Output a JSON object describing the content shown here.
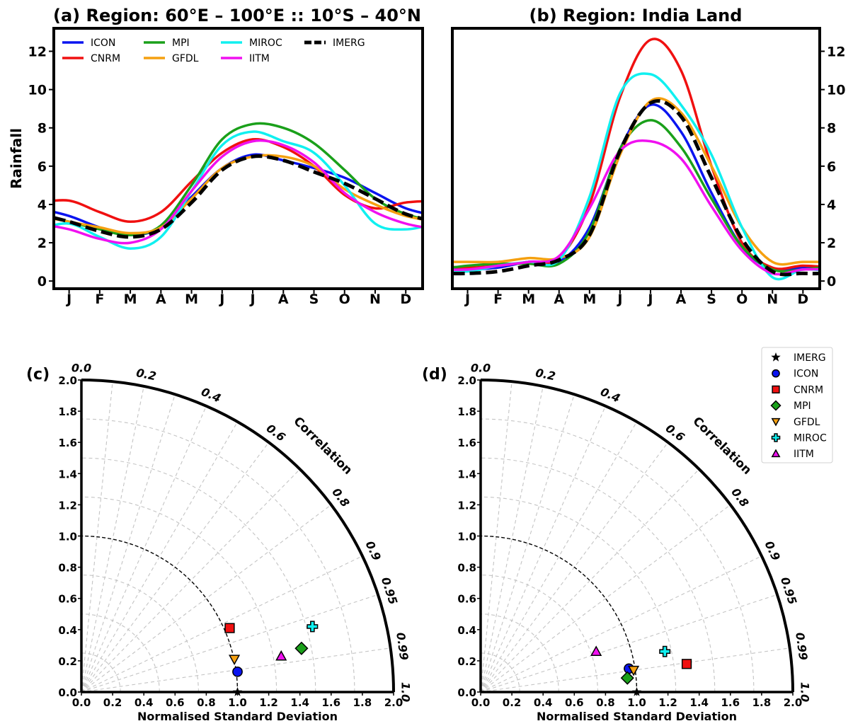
{
  "colors": {
    "ICON": "#0a14f0",
    "CNRM": "#f01010",
    "MPI": "#1aa01a",
    "GFDL": "#f5a010",
    "MIROC": "#10f0f0",
    "IITM": "#f010f0",
    "IMERG": "#000000"
  },
  "chart_data": [
    {
      "panel": "a",
      "type": "line",
      "title": "(a) Region: 60°E – 100°E :: 10°S – 40°N",
      "ylabel": "Rainfall",
      "xlabel": "",
      "ylim": [
        -0.4,
        13.2
      ],
      "yticks": [
        0,
        2,
        4,
        6,
        8,
        10,
        12
      ],
      "categories": [
        "J",
        "F",
        "M",
        "A",
        "M",
        "J",
        "J",
        "A",
        "S",
        "O",
        "N",
        "D"
      ],
      "legend": "top (4 columns)",
      "series": [
        {
          "name": "ICON",
          "values": [
            3.4,
            2.8,
            2.4,
            2.8,
            4.4,
            5.9,
            6.6,
            6.3,
            5.9,
            5.4,
            4.6,
            3.8
          ]
        },
        {
          "name": "CNRM",
          "values": [
            4.2,
            3.6,
            3.1,
            3.6,
            5.2,
            6.7,
            7.4,
            7.0,
            6.0,
            4.5,
            3.8,
            4.1
          ]
        },
        {
          "name": "MPI",
          "values": [
            3.1,
            2.7,
            2.4,
            2.9,
            5.0,
            7.4,
            8.2,
            8.0,
            7.2,
            5.8,
            4.3,
            3.5
          ]
        },
        {
          "name": "GFDL",
          "values": [
            3.1,
            2.8,
            2.5,
            2.8,
            4.3,
            5.9,
            6.5,
            6.5,
            6.0,
            4.8,
            4.0,
            3.4
          ]
        },
        {
          "name": "MIROC",
          "values": [
            3.0,
            2.3,
            1.7,
            2.3,
            4.7,
            7.1,
            7.8,
            7.3,
            6.7,
            5.0,
            3.0,
            2.7
          ]
        },
        {
          "name": "IITM",
          "values": [
            2.7,
            2.2,
            2.0,
            2.7,
            4.7,
            6.5,
            7.3,
            7.1,
            6.2,
            4.6,
            3.6,
            3.0
          ]
        },
        {
          "name": "IMERG",
          "values": [
            3.1,
            2.6,
            2.3,
            2.7,
            4.1,
            5.8,
            6.5,
            6.3,
            5.7,
            5.1,
            4.3,
            3.5
          ]
        }
      ]
    },
    {
      "panel": "b",
      "type": "line",
      "title": "(b) Region: India Land",
      "ylabel": "",
      "xlabel": "",
      "ylim": [
        -0.4,
        13.2
      ],
      "yticks": [
        0,
        2,
        4,
        6,
        8,
        10,
        12
      ],
      "categories": [
        "J",
        "F",
        "M",
        "A",
        "M",
        "J",
        "J",
        "A",
        "S",
        "O",
        "N",
        "D"
      ],
      "series": [
        {
          "name": "ICON",
          "values": [
            0.6,
            0.7,
            1.0,
            1.0,
            2.8,
            6.9,
            9.2,
            7.8,
            4.6,
            1.8,
            0.6,
            0.7
          ]
        },
        {
          "name": "CNRM",
          "values": [
            0.7,
            0.8,
            1.0,
            1.2,
            4.0,
            9.6,
            12.6,
            11.0,
            6.0,
            2.0,
            0.7,
            0.8
          ]
        },
        {
          "name": "MPI",
          "values": [
            0.8,
            0.9,
            0.9,
            0.9,
            2.6,
            6.9,
            8.4,
            7.0,
            4.3,
            1.8,
            0.6,
            0.6
          ]
        },
        {
          "name": "GFDL",
          "values": [
            1.0,
            1.0,
            1.2,
            1.2,
            2.3,
            6.6,
            9.4,
            8.8,
            6.0,
            2.8,
            1.0,
            1.0
          ]
        },
        {
          "name": "MIROC",
          "values": [
            0.5,
            0.8,
            1.0,
            1.1,
            4.4,
            9.8,
            10.8,
            9.2,
            6.6,
            2.8,
            0.2,
            0.6
          ]
        },
        {
          "name": "IITM",
          "values": [
            0.6,
            0.8,
            1.0,
            1.3,
            3.8,
            6.8,
            7.3,
            6.4,
            3.9,
            1.6,
            0.4,
            0.6
          ]
        },
        {
          "name": "IMERG",
          "values": [
            0.4,
            0.5,
            0.8,
            1.1,
            2.4,
            6.8,
            9.3,
            8.6,
            5.4,
            2.2,
            0.5,
            0.4
          ]
        }
      ]
    },
    {
      "panel": "c",
      "type": "scatter",
      "subtype": "taylor",
      "label": "(c)",
      "xlabel": "Normalised Standard Deviation",
      "axis_label": "Correlation",
      "sd_range": [
        0,
        2
      ],
      "sd_ticks": [
        "0.0",
        "0.2",
        "0.4",
        "0.6",
        "0.8",
        "1.0",
        "1.2",
        "1.4",
        "1.6",
        "1.8",
        "2.0"
      ],
      "corr_ticks": [
        "0.0",
        "0.2",
        "0.4",
        "0.6",
        "0.8",
        "0.9",
        "0.95",
        "0.99",
        "1.0"
      ],
      "points": [
        {
          "name": "ICON",
          "x": 1.0,
          "y": 0.13
        },
        {
          "name": "CNRM",
          "x": 0.95,
          "y": 0.41
        },
        {
          "name": "MPI",
          "x": 1.41,
          "y": 0.28
        },
        {
          "name": "GFDL",
          "x": 0.98,
          "y": 0.21
        },
        {
          "name": "MIROC",
          "x": 1.48,
          "y": 0.42
        },
        {
          "name": "IITM",
          "x": 1.28,
          "y": 0.23
        }
      ]
    },
    {
      "panel": "d",
      "type": "scatter",
      "subtype": "taylor",
      "label": "(d)",
      "xlabel": "Normalised Standard Deviation",
      "axis_label": "Correlation",
      "sd_range": [
        0,
        2
      ],
      "sd_ticks": [
        "0.0",
        "0.2",
        "0.4",
        "0.6",
        "0.8",
        "1.0",
        "1.2",
        "1.4",
        "1.6",
        "1.8",
        "2.0"
      ],
      "corr_ticks": [
        "0.0",
        "0.2",
        "0.4",
        "0.6",
        "0.8",
        "0.9",
        "0.95",
        "0.99",
        "1.0"
      ],
      "legend": "top-right",
      "points": [
        {
          "name": "ICON",
          "x": 0.95,
          "y": 0.15
        },
        {
          "name": "CNRM",
          "x": 1.32,
          "y": 0.18
        },
        {
          "name": "MPI",
          "x": 0.94,
          "y": 0.09
        },
        {
          "name": "GFDL",
          "x": 0.98,
          "y": 0.14
        },
        {
          "name": "MIROC",
          "x": 1.18,
          "y": 0.26
        },
        {
          "name": "IITM",
          "x": 0.74,
          "y": 0.26
        }
      ]
    }
  ],
  "taylor_legend": [
    {
      "name": "IMERG",
      "marker": "star"
    },
    {
      "name": "ICON",
      "marker": "circle"
    },
    {
      "name": "CNRM",
      "marker": "square"
    },
    {
      "name": "MPI",
      "marker": "diamond"
    },
    {
      "name": "GFDL",
      "marker": "triangle-down"
    },
    {
      "name": "MIROC",
      "marker": "plus"
    },
    {
      "name": "IITM",
      "marker": "triangle-up"
    }
  ]
}
